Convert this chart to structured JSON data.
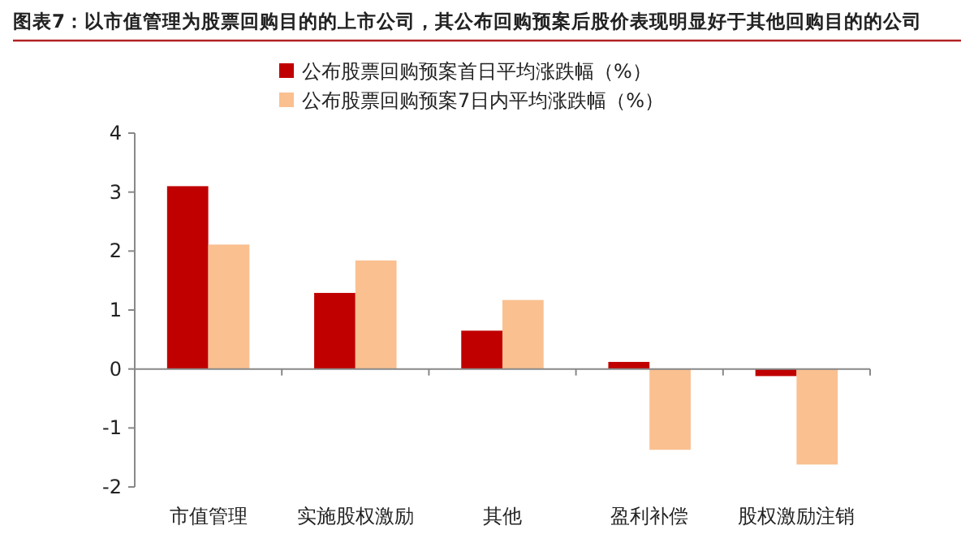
{
  "chart_data": {
    "type": "bar",
    "title": "图表7：以市值管理为股票回购目的的上市公司，其公布回购预案后股价表现明显好于其他回购目的的公司",
    "categories": [
      "市值管理",
      "实施股权激励",
      "其他",
      "盈利补偿",
      "股权激励注销"
    ],
    "series": [
      {
        "name": "公布股票回购预案首日平均涨跌幅（%）",
        "color": "#c00000",
        "values": [
          3.1,
          1.29,
          0.65,
          0.12,
          -0.12
        ]
      },
      {
        "name": "公布股票回购预案7日内平均涨跌幅（%）",
        "color": "#fac090",
        "values": [
          2.11,
          1.84,
          1.17,
          -1.37,
          -1.62
        ]
      }
    ],
    "ylim": [
      -2,
      4
    ],
    "yticks": [
      -2,
      -1,
      0,
      1,
      2,
      3,
      4
    ],
    "legend": "top"
  }
}
